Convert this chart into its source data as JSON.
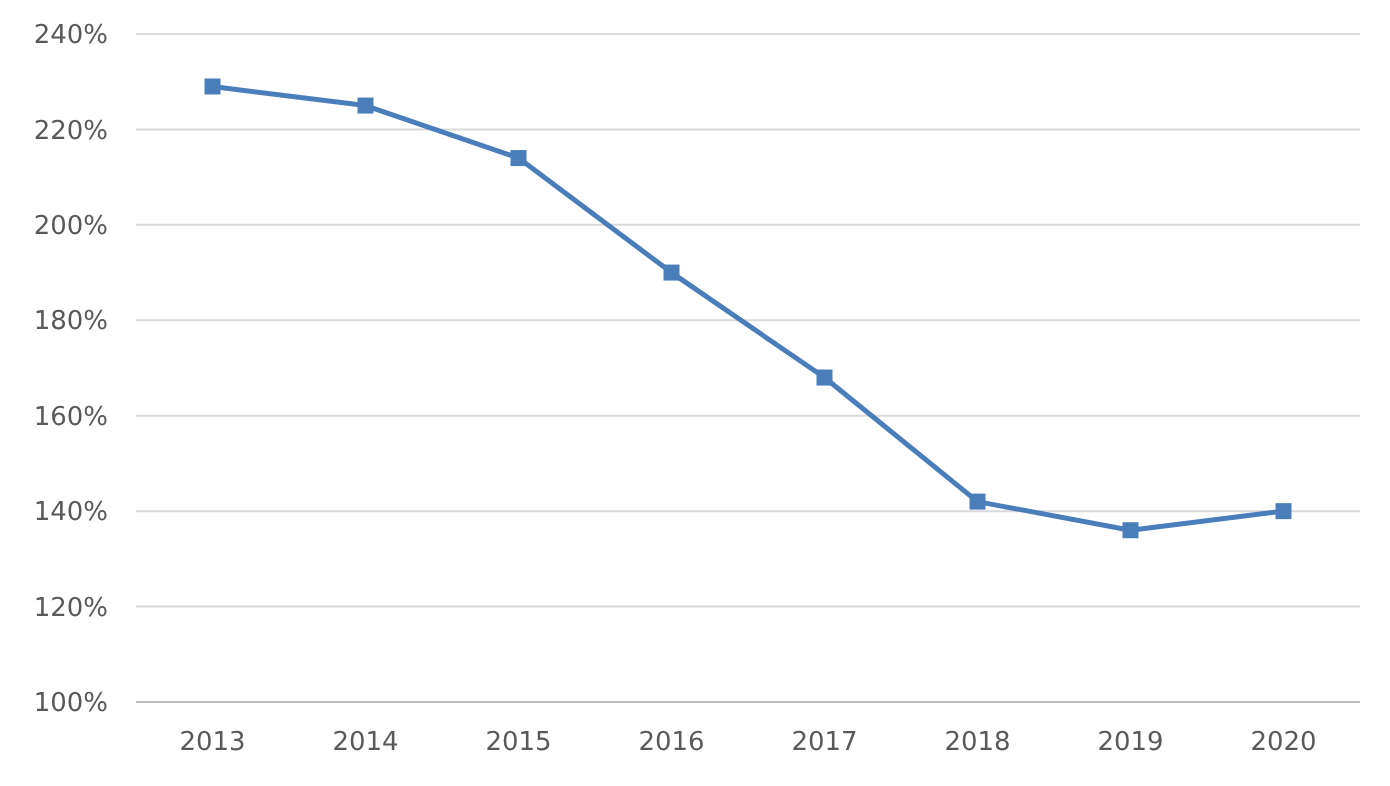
{
  "chart_data": {
    "type": "line",
    "categories": [
      "2013",
      "2014",
      "2015",
      "2016",
      "2017",
      "2018",
      "2019",
      "2020"
    ],
    "series": [
      {
        "color": "#4a7ebb",
        "values": [
          229,
          225,
          214,
          190,
          168,
          142,
          136,
          140
        ]
      }
    ],
    "ylim": [
      100,
      240
    ],
    "yticks": [
      {
        "value": 100,
        "label": "100%"
      },
      {
        "value": 120,
        "label": "120%"
      },
      {
        "value": 140,
        "label": "140%"
      },
      {
        "value": 160,
        "label": "160%"
      },
      {
        "value": 180,
        "label": "180%"
      },
      {
        "value": 200,
        "label": "200%"
      },
      {
        "value": 220,
        "label": "220%"
      },
      {
        "value": 240,
        "label": "240%"
      }
    ],
    "grid": "y",
    "marker": "square",
    "line_style": "solid"
  }
}
